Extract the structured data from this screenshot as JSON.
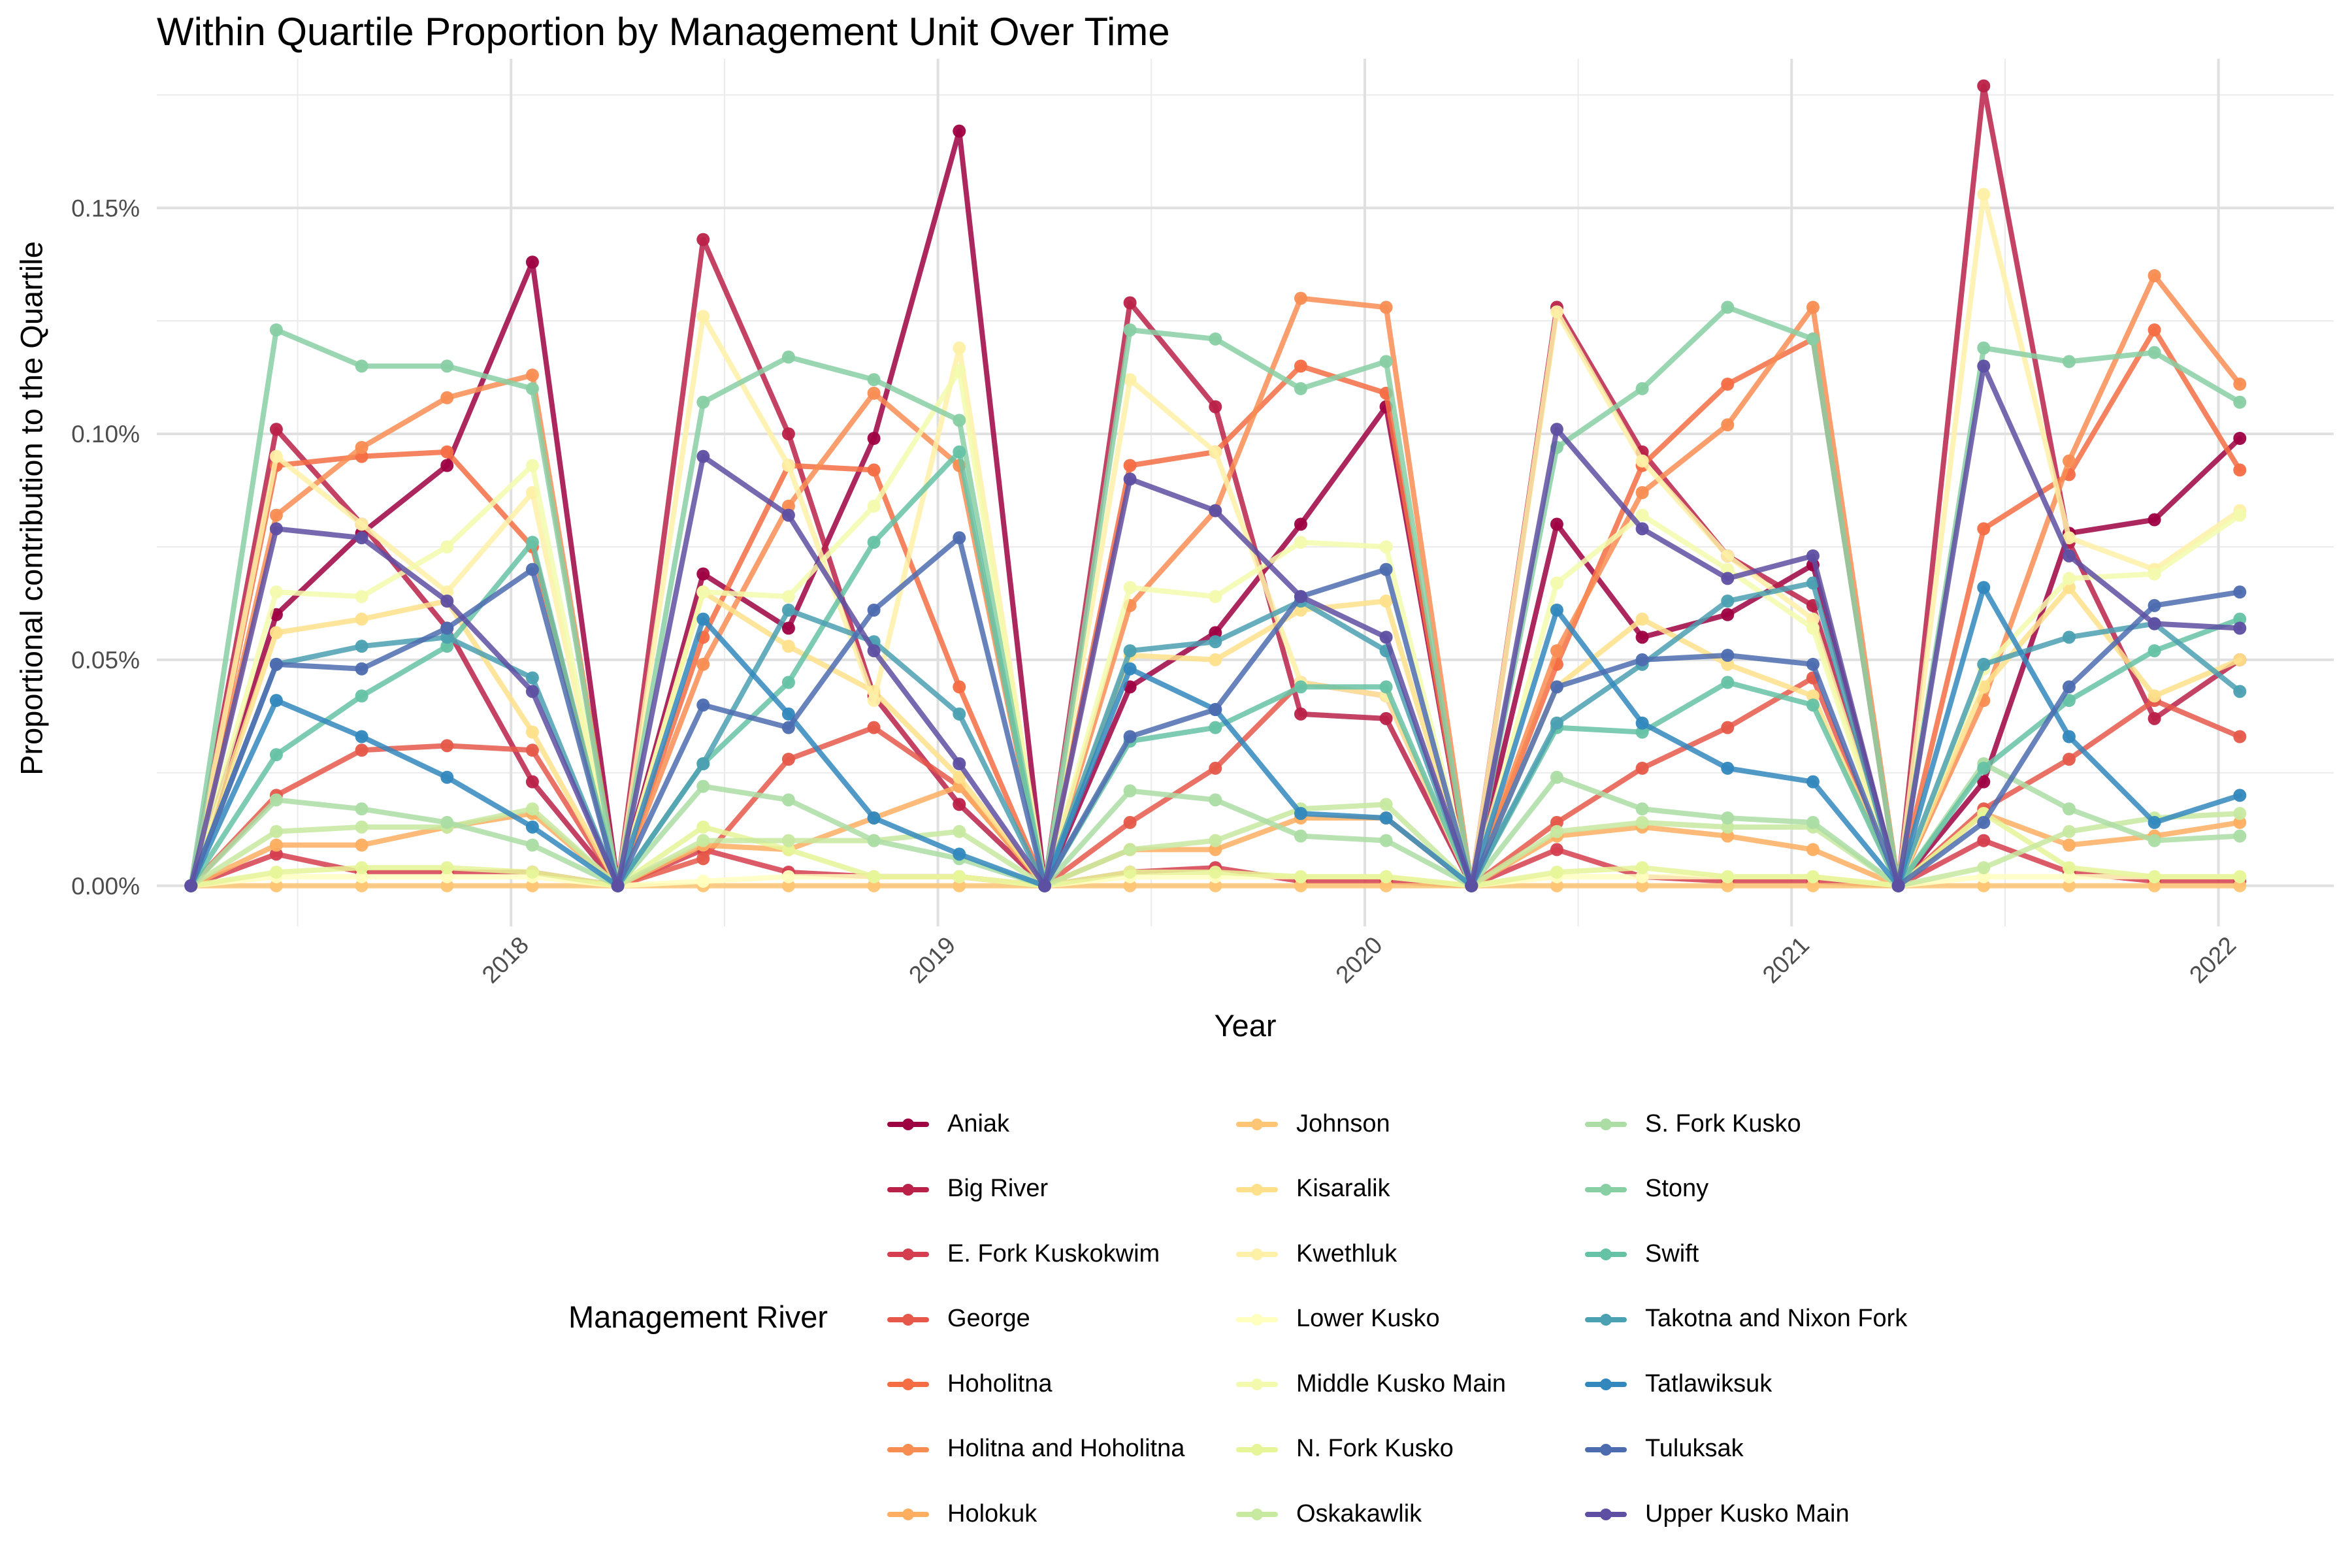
{
  "chart_data": {
    "type": "line",
    "title": "Within Quartile Proportion by Management Unit Over Time",
    "xlabel": "Year",
    "ylabel": "Proportional contribution to the Quartile",
    "x_ticks": [
      "2018",
      "2019",
      "2020",
      "2021",
      "2022"
    ],
    "x_tick_values": [
      2018,
      2019,
      2020,
      2021,
      2022
    ],
    "y_ticks": [
      "0.00%",
      "0.05%",
      "0.10%",
      "0.15%"
    ],
    "y_tick_values": [
      0,
      0.05,
      0.1,
      0.15
    ],
    "xlim": [
      2017.17,
      2022.27
    ],
    "ylim": [
      -0.009,
      0.183
    ],
    "x": [
      2017.25,
      2017.45,
      2017.65,
      2017.85,
      2018.05,
      2018.25,
      2018.45,
      2018.65,
      2018.85,
      2019.05,
      2019.25,
      2019.45,
      2019.65,
      2019.85,
      2020.05,
      2020.25,
      2020.45,
      2020.65,
      2020.85,
      2021.05,
      2021.25,
      2021.45,
      2021.65,
      2021.85,
      2022.05
    ],
    "legend_title": "Management River",
    "legend_position": "bottom",
    "grid": true,
    "series": [
      {
        "name": "Aniak",
        "color": "#9E0142",
        "values": [
          0,
          0.06,
          0.078,
          0.093,
          0.138,
          0,
          0.069,
          0.057,
          0.099,
          0.167,
          0,
          0.044,
          0.056,
          0.08,
          0.106,
          0,
          0.08,
          0.055,
          0.06,
          0.071,
          0,
          0.023,
          0.078,
          0.081,
          0.099
        ]
      },
      {
        "name": "Big River",
        "color": "#BA2148",
        "values": [
          0,
          0.101,
          0.08,
          0.057,
          0.023,
          0,
          0.143,
          0.1,
          0.042,
          0.018,
          0,
          0.129,
          0.106,
          0.038,
          0.037,
          0,
          0.128,
          0.096,
          0.073,
          0.062,
          0,
          0.177,
          0.076,
          0.037,
          0.05
        ]
      },
      {
        "name": "E. Fork Kuskokwim",
        "color": "#D53E4F",
        "values": [
          0,
          0.007,
          0.003,
          0.003,
          0.003,
          0,
          0.008,
          0.003,
          0.002,
          0.002,
          0,
          0.003,
          0.004,
          0.001,
          0.001,
          0,
          0.008,
          0.002,
          0.001,
          0.001,
          0,
          0.01,
          0.003,
          0.001,
          0.001
        ]
      },
      {
        "name": "George",
        "color": "#E6584A",
        "values": [
          0,
          0.02,
          0.03,
          0.031,
          0.03,
          0,
          0.006,
          0.028,
          0.035,
          0.022,
          0,
          0.014,
          0.026,
          0.045,
          0.042,
          0,
          0.014,
          0.026,
          0.035,
          0.046,
          0,
          0.017,
          0.028,
          0.041,
          0.033
        ]
      },
      {
        "name": "Hoholitna",
        "color": "#F46D43",
        "values": [
          0,
          0.093,
          0.095,
          0.096,
          0.075,
          0,
          0.055,
          0.093,
          0.092,
          0.044,
          0,
          0.093,
          0.096,
          0.115,
          0.109,
          0,
          0.049,
          0.093,
          0.111,
          0.121,
          0,
          0.079,
          0.091,
          0.123,
          0.092
        ]
      },
      {
        "name": "Holitna and Hoholitna",
        "color": "#F88D52",
        "values": [
          0,
          0.082,
          0.097,
          0.108,
          0.113,
          0,
          0.049,
          0.084,
          0.109,
          0.093,
          0,
          0.062,
          0.083,
          0.13,
          0.128,
          0,
          0.052,
          0.087,
          0.102,
          0.128,
          0,
          0.041,
          0.094,
          0.135,
          0.111
        ]
      },
      {
        "name": "Holokuk",
        "color": "#FDAE61",
        "values": [
          0,
          0.009,
          0.009,
          0.013,
          0.016,
          0,
          0.009,
          0.008,
          0.015,
          0.022,
          0,
          0.008,
          0.008,
          0.015,
          0.015,
          0,
          0.011,
          0.013,
          0.011,
          0.008,
          0,
          0.016,
          0.009,
          0.011,
          0.014
        ]
      },
      {
        "name": "Johnson",
        "color": "#FDC574",
        "values": [
          0,
          0.0,
          0.0,
          0.0,
          0.0,
          0,
          0.0,
          0.0,
          0.0,
          0.0,
          0,
          0.0,
          0.0,
          0.0,
          0.0,
          0,
          0.0,
          0.0,
          0.0,
          0.0,
          0,
          0.0,
          0.0,
          0.0,
          0.0
        ]
      },
      {
        "name": "Kisaralik",
        "color": "#FEE08B",
        "values": [
          0,
          0.056,
          0.059,
          0.063,
          0.034,
          0,
          0.065,
          0.053,
          0.043,
          0.024,
          0,
          0.051,
          0.05,
          0.061,
          0.063,
          0,
          0.044,
          0.059,
          0.049,
          0.042,
          0,
          0.044,
          0.066,
          0.042,
          0.05
        ]
      },
      {
        "name": "Kwethluk",
        "color": "#FEF0A7",
        "values": [
          0,
          0.095,
          0.08,
          0.065,
          0.087,
          0,
          0.126,
          0.093,
          0.041,
          0.119,
          0,
          0.112,
          0.096,
          0.045,
          0.042,
          0,
          0.127,
          0.094,
          0.073,
          0.059,
          0,
          0.153,
          0.077,
          0.07,
          0.083
        ]
      },
      {
        "name": "Lower Kusko",
        "color": "#FFFFBF",
        "values": [
          0,
          0.002,
          0.002,
          0.002,
          0.002,
          0,
          0.001,
          0.002,
          0.002,
          0.002,
          0,
          0.002,
          0.002,
          0.002,
          0.002,
          0,
          0.002,
          0.002,
          0.002,
          0.002,
          0,
          0.002,
          0.002,
          0.002,
          0.002
        ]
      },
      {
        "name": "Middle Kusko Main",
        "color": "#F3FAAD",
        "values": [
          0,
          0.065,
          0.064,
          0.075,
          0.093,
          0,
          0.065,
          0.064,
          0.084,
          0.114,
          0,
          0.066,
          0.064,
          0.076,
          0.075,
          0,
          0.067,
          0.082,
          0.07,
          0.057,
          0,
          0.048,
          0.068,
          0.069,
          0.082
        ]
      },
      {
        "name": "N. Fork Kusko",
        "color": "#E6F598",
        "values": [
          0,
          0.003,
          0.004,
          0.004,
          0.003,
          0,
          0.013,
          0.008,
          0.002,
          0.002,
          0,
          0.003,
          0.003,
          0.002,
          0.002,
          0,
          0.003,
          0.004,
          0.002,
          0.002,
          0,
          0.016,
          0.004,
          0.002,
          0.002
        ]
      },
      {
        "name": "Oskakawlik",
        "color": "#C7E9A0",
        "values": [
          0,
          0.012,
          0.013,
          0.013,
          0.017,
          0,
          0.01,
          0.01,
          0.01,
          0.012,
          0,
          0.008,
          0.01,
          0.017,
          0.018,
          0,
          0.012,
          0.014,
          0.013,
          0.013,
          0,
          0.004,
          0.012,
          0.015,
          0.016
        ]
      },
      {
        "name": "S. Fork Kusko",
        "color": "#ABDDA4",
        "values": [
          0,
          0.019,
          0.017,
          0.014,
          0.009,
          0,
          0.022,
          0.019,
          0.01,
          0.006,
          0,
          0.021,
          0.019,
          0.011,
          0.01,
          0,
          0.024,
          0.017,
          0.015,
          0.014,
          0,
          0.027,
          0.017,
          0.01,
          0.011
        ]
      },
      {
        "name": "Stony",
        "color": "#88CFA4",
        "values": [
          0,
          0.123,
          0.115,
          0.115,
          0.11,
          0,
          0.107,
          0.117,
          0.112,
          0.103,
          0,
          0.123,
          0.121,
          0.11,
          0.116,
          0,
          0.097,
          0.11,
          0.128,
          0.121,
          0,
          0.119,
          0.116,
          0.118,
          0.107
        ]
      },
      {
        "name": "Swift",
        "color": "#66C2A5",
        "values": [
          0,
          0.029,
          0.042,
          0.053,
          0.076,
          0,
          0.027,
          0.045,
          0.076,
          0.096,
          0,
          0.032,
          0.035,
          0.044,
          0.044,
          0,
          0.035,
          0.034,
          0.045,
          0.04,
          0,
          0.026,
          0.041,
          0.052,
          0.059
        ]
      },
      {
        "name": "Takotna and Nixon Fork",
        "color": "#4BA0B1",
        "values": [
          0,
          0.049,
          0.053,
          0.055,
          0.046,
          0,
          0.027,
          0.061,
          0.054,
          0.038,
          0,
          0.052,
          0.054,
          0.063,
          0.052,
          0,
          0.036,
          0.049,
          0.063,
          0.067,
          0,
          0.049,
          0.055,
          0.058,
          0.043
        ]
      },
      {
        "name": "Tatlawiksuk",
        "color": "#3288BD",
        "values": [
          0,
          0.041,
          0.033,
          0.024,
          0.013,
          0,
          0.059,
          0.038,
          0.015,
          0.007,
          0,
          0.048,
          0.039,
          0.016,
          0.015,
          0,
          0.061,
          0.036,
          0.026,
          0.023,
          0,
          0.066,
          0.033,
          0.014,
          0.02
        ]
      },
      {
        "name": "Tuluksak",
        "color": "#4D6CB0",
        "values": [
          0,
          0.049,
          0.048,
          0.057,
          0.07,
          0,
          0.04,
          0.035,
          0.061,
          0.077,
          0,
          0.033,
          0.039,
          0.064,
          0.07,
          0,
          0.044,
          0.05,
          0.051,
          0.049,
          0,
          0.014,
          0.044,
          0.062,
          0.065
        ]
      },
      {
        "name": "Upper Kusko Main",
        "color": "#5E4FA2",
        "values": [
          0,
          0.079,
          0.077,
          0.063,
          0.043,
          0,
          0.095,
          0.082,
          0.052,
          0.027,
          0,
          0.09,
          0.083,
          0.064,
          0.055,
          0,
          0.101,
          0.079,
          0.068,
          0.073,
          0,
          0.115,
          0.073,
          0.058,
          0.057
        ]
      }
    ]
  }
}
